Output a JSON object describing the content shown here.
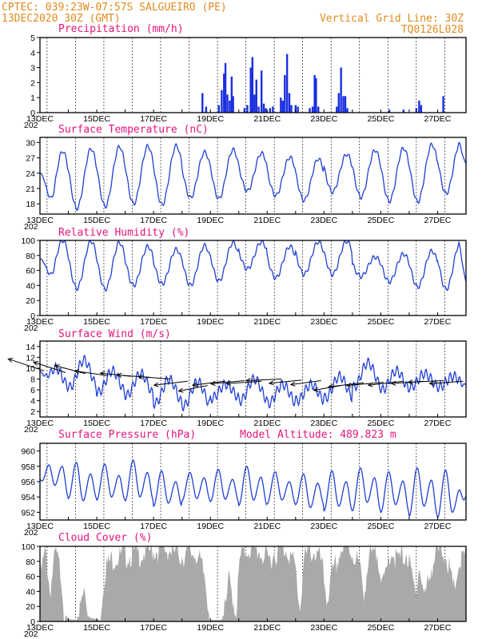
{
  "header": {
    "line1_left": "CPTEC:  039:23W-07:57S  SALGUEIRO (PE)",
    "line2_left": "13DEC2020 30Z (GMT)",
    "line1_right": "Vertical Grid Line: 30Z",
    "line2_right": "TQ0126L028"
  },
  "x_labels": [
    "13DEC",
    "15DEC",
    "17DEC",
    "19DEC",
    "21DEC",
    "23DEC",
    "25DEC",
    "27DEC"
  ],
  "x_sublabel": "202",
  "colors": {
    "line": "#1f3fd6",
    "bars": "#1a2fe0",
    "cloud": "#a9a9a9",
    "title": "#e6147a",
    "header": "#e08a1e",
    "arrows": "#000000"
  },
  "chart_data": [
    {
      "id": "precip",
      "type": "bar",
      "title": "Precipitation (mm/h)",
      "ylim": [
        0,
        5
      ],
      "yticks": [
        0,
        1,
        2,
        3,
        4,
        5
      ],
      "xlim": [
        0,
        15
      ],
      "unit_x": "days since 13DEC2020 00Z",
      "series": [
        {
          "name": "Precipitation (mm/h)",
          "points": [
            [
              5.72,
              1.3
            ],
            [
              5.85,
              0.4
            ],
            [
              6.3,
              0.5
            ],
            [
              6.4,
              1.5
            ],
            [
              6.48,
              2.6
            ],
            [
              6.53,
              3.3
            ],
            [
              6.6,
              1.2
            ],
            [
              6.68,
              0.8
            ],
            [
              6.75,
              2.4
            ],
            [
              6.8,
              1.1
            ],
            [
              7.2,
              0.3
            ],
            [
              7.3,
              0.5
            ],
            [
              7.42,
              3.0
            ],
            [
              7.48,
              3.7
            ],
            [
              7.55,
              1.2
            ],
            [
              7.62,
              2.2
            ],
            [
              7.7,
              0.4
            ],
            [
              7.8,
              2.8
            ],
            [
              7.88,
              0.6
            ],
            [
              7.95,
              0.3
            ],
            [
              8.1,
              0.3
            ],
            [
              8.2,
              0.4
            ],
            [
              8.48,
              1.0
            ],
            [
              8.55,
              0.8
            ],
            [
              8.62,
              2.5
            ],
            [
              8.7,
              3.9
            ],
            [
              8.78,
              1.3
            ],
            [
              8.85,
              0.5
            ],
            [
              9.0,
              0.5
            ],
            [
              9.08,
              0.4
            ],
            [
              9.5,
              0.3
            ],
            [
              9.6,
              0.4
            ],
            [
              9.67,
              2.5
            ],
            [
              9.72,
              2.3
            ],
            [
              9.8,
              0.4
            ],
            [
              10.45,
              0.4
            ],
            [
              10.52,
              1.3
            ],
            [
              10.6,
              3.0
            ],
            [
              10.68,
              1.1
            ],
            [
              10.75,
              1.1
            ],
            [
              10.82,
              0.3
            ],
            [
              12.3,
              0.2
            ],
            [
              12.8,
              0.2
            ],
            [
              13.25,
              0.3
            ],
            [
              13.35,
              0.8
            ],
            [
              13.42,
              0.5
            ],
            [
              14.2,
              1.1
            ]
          ]
        }
      ]
    },
    {
      "id": "temp",
      "type": "line",
      "title": "Surface Temperature (nC)",
      "ylim": [
        16,
        31
      ],
      "yticks": [
        18,
        21,
        24,
        27,
        30
      ],
      "xlim": [
        0,
        15
      ],
      "series": [
        {
          "name": "Surface Temperature (nC)",
          "daily": [
            [
              28.3,
              16.9
            ],
            [
              28.8,
              17.1
            ],
            [
              29.2,
              17.5
            ],
            [
              29.3,
              18.0
            ],
            [
              29.4,
              17.8
            ],
            [
              28.1,
              19.2
            ],
            [
              28.6,
              19.0
            ],
            [
              27.9,
              20.5
            ],
            [
              27.1,
              19.6
            ],
            [
              26.8,
              18.7
            ],
            [
              27.7,
              20.3
            ],
            [
              28.5,
              19.3
            ],
            [
              28.9,
              18.5
            ],
            [
              29.6,
              18.4
            ],
            [
              30.0,
              20.0
            ]
          ],
          "start": 24.0,
          "end": 26.0
        }
      ]
    },
    {
      "id": "rh",
      "type": "line",
      "title": "Relative Humidity (%)",
      "ylim": [
        0,
        100
      ],
      "yticks": [
        0,
        20,
        40,
        60,
        80,
        100
      ],
      "xlim": [
        0,
        15
      ],
      "series": [
        {
          "name": "Relative Humidity (%)",
          "daily": [
            [
              100,
              45
            ],
            [
              99,
              36
            ],
            [
              97,
              35
            ],
            [
              92,
              40
            ],
            [
              88,
              42
            ],
            [
              93,
              40
            ],
            [
              97,
              46
            ],
            [
              98,
              62
            ],
            [
              92,
              50
            ],
            [
              98,
              55
            ],
            [
              99,
              55
            ],
            [
              78,
              52
            ],
            [
              82,
              45
            ],
            [
              86,
              38
            ],
            [
              97,
              35
            ]
          ],
          "start": 75,
          "end": 45
        }
      ]
    },
    {
      "id": "wind",
      "type": "line",
      "title": "Surface Wind (m/s)",
      "ylim": [
        1,
        15
      ],
      "yticks": [
        2,
        4,
        6,
        8,
        10,
        12,
        14
      ],
      "xlim": [
        0,
        15
      ],
      "series": [
        {
          "name": "Surface Wind (m/s)",
          "daily": [
            [
              10.0,
              6.5
            ],
            [
              11.5,
              6.5
            ],
            [
              9.5,
              5.5
            ],
            [
              9.0,
              5.0
            ],
            [
              8.0,
              3.5
            ],
            [
              7.5,
              3.0
            ],
            [
              7.0,
              4.5
            ],
            [
              8.0,
              4.0
            ],
            [
              7.0,
              3.5
            ],
            [
              7.0,
              4.0
            ],
            [
              8.5,
              4.5
            ],
            [
              11.0,
              6.5
            ],
            [
              9.5,
              6.0
            ],
            [
              9.0,
              6.5
            ],
            [
              8.5,
              6.5
            ]
          ],
          "start": 9.5,
          "end": 7.0
        }
      ],
      "arrows": [
        [
          0.15,
          9.5,
          -45,
          30
        ],
        [
          0.9,
          9.2,
          -40,
          26
        ],
        [
          1.6,
          9.0,
          -38,
          20
        ],
        [
          2.4,
          8.6,
          -42,
          12
        ],
        [
          3.2,
          8.5,
          -38,
          8
        ],
        [
          3.9,
          8.3,
          -42,
          6
        ],
        [
          4.6,
          8.0,
          -40,
          6
        ],
        [
          5.2,
          7.6,
          -42,
          -10
        ],
        [
          5.9,
          6.8,
          -36,
          -14
        ],
        [
          6.5,
          7.6,
          -40,
          -10
        ],
        [
          7.2,
          7.7,
          -42,
          -8
        ],
        [
          7.8,
          7.6,
          -44,
          -6
        ],
        [
          8.5,
          8.0,
          -44,
          -4
        ],
        [
          9.2,
          7.8,
          -40,
          -8
        ],
        [
          9.9,
          7.7,
          -38,
          -10
        ],
        [
          10.6,
          6.8,
          -34,
          -12
        ],
        [
          11.4,
          7.3,
          -44,
          -10
        ],
        [
          12.1,
          7.4,
          -46,
          -8
        ],
        [
          12.8,
          7.6,
          -44,
          -10
        ],
        [
          13.5,
          7.6,
          -40,
          -6
        ],
        [
          14.2,
          7.7,
          -44,
          -4
        ],
        [
          14.9,
          7.6,
          -42,
          -6
        ]
      ]
    },
    {
      "id": "pressure",
      "type": "line",
      "title": "Surface Pressure (hPa)",
      "annotation": "Model Altitude: 489.823 m",
      "ylim": [
        951,
        961
      ],
      "yticks": [
        952,
        954,
        956,
        958,
        960
      ],
      "xlim": [
        0,
        15
      ],
      "series": [
        {
          "name": "Surface Pressure (hPa)",
          "semidiurnal": [
            [
              959.5,
              955.5,
              958.0,
              954.0
            ],
            [
              958.5,
              953.5,
              957.0,
              953.8
            ],
            [
              958.3,
              954.0,
              956.8,
              953.6
            ],
            [
              958.8,
              954.0,
              957.2,
              953.5
            ],
            [
              957.4,
              953.2,
              956.0,
              952.8
            ],
            [
              957.2,
              953.8,
              956.5,
              953.5
            ],
            [
              957.6,
              953.7,
              956.3,
              953.4
            ],
            [
              958.0,
              953.6,
              956.6,
              952.9
            ],
            [
              957.3,
              953.6,
              956.0,
              953.1
            ],
            [
              957.0,
              952.6,
              955.8,
              953.0
            ],
            [
              957.4,
              952.8,
              956.0,
              952.2
            ],
            [
              957.8,
              953.3,
              956.5,
              952.2
            ],
            [
              957.3,
              953.0,
              956.1,
              952.0
            ],
            [
              957.8,
              952.8,
              956.2,
              951.5
            ],
            [
              957.5,
              952.0,
              955.0,
              951.3
            ]
          ],
          "start": 956.3,
          "end": 954.2
        }
      ]
    },
    {
      "id": "cloud",
      "type": "area",
      "title": "Cloud Cover (%)",
      "ylim": [
        0,
        100
      ],
      "yticks": [
        0,
        20,
        40,
        60,
        80,
        100
      ],
      "xlim": [
        0,
        15
      ],
      "series": [
        {
          "name": "Cloud Cover (%)",
          "profile": [
            [
              0,
              55
            ],
            [
              0.2,
              95
            ],
            [
              0.35,
              40
            ],
            [
              0.55,
              92
            ],
            [
              0.75,
              62
            ],
            [
              0.85,
              12
            ],
            [
              1.0,
              3
            ],
            [
              1.3,
              2
            ],
            [
              1.45,
              20
            ],
            [
              1.55,
              42
            ],
            [
              1.65,
              22
            ],
            [
              1.75,
              5
            ],
            [
              2.1,
              2
            ],
            [
              2.3,
              72
            ],
            [
              2.6,
              85
            ],
            [
              3.0,
              88
            ],
            [
              3.5,
              90
            ],
            [
              4.0,
              95
            ],
            [
              4.5,
              96
            ],
            [
              5.0,
              88
            ],
            [
              5.5,
              92
            ],
            [
              5.8,
              60
            ],
            [
              6.0,
              2
            ],
            [
              6.4,
              2
            ],
            [
              6.55,
              20
            ],
            [
              6.65,
              55
            ],
            [
              6.75,
              40
            ],
            [
              6.9,
              10
            ],
            [
              7.05,
              85
            ],
            [
              7.3,
              98
            ],
            [
              7.7,
              95
            ],
            [
              8.0,
              80
            ],
            [
              8.3,
              92
            ],
            [
              8.7,
              98
            ],
            [
              9.0,
              70
            ],
            [
              9.15,
              15
            ],
            [
              9.3,
              85
            ],
            [
              9.6,
              95
            ],
            [
              9.9,
              80
            ],
            [
              10.1,
              30
            ],
            [
              10.3,
              60
            ],
            [
              10.6,
              96
            ],
            [
              10.9,
              96
            ],
            [
              11.2,
              80
            ],
            [
              11.4,
              40
            ],
            [
              11.6,
              85
            ],
            [
              11.9,
              90
            ],
            [
              12.1,
              45
            ],
            [
              12.35,
              96
            ],
            [
              12.6,
              80
            ],
            [
              12.9,
              92
            ],
            [
              13.2,
              40
            ],
            [
              13.35,
              72
            ],
            [
              13.55,
              30
            ],
            [
              13.75,
              70
            ],
            [
              14.0,
              92
            ],
            [
              14.3,
              92
            ],
            [
              14.55,
              40
            ],
            [
              14.75,
              75
            ],
            [
              15.0,
              88
            ]
          ]
        }
      ]
    }
  ]
}
